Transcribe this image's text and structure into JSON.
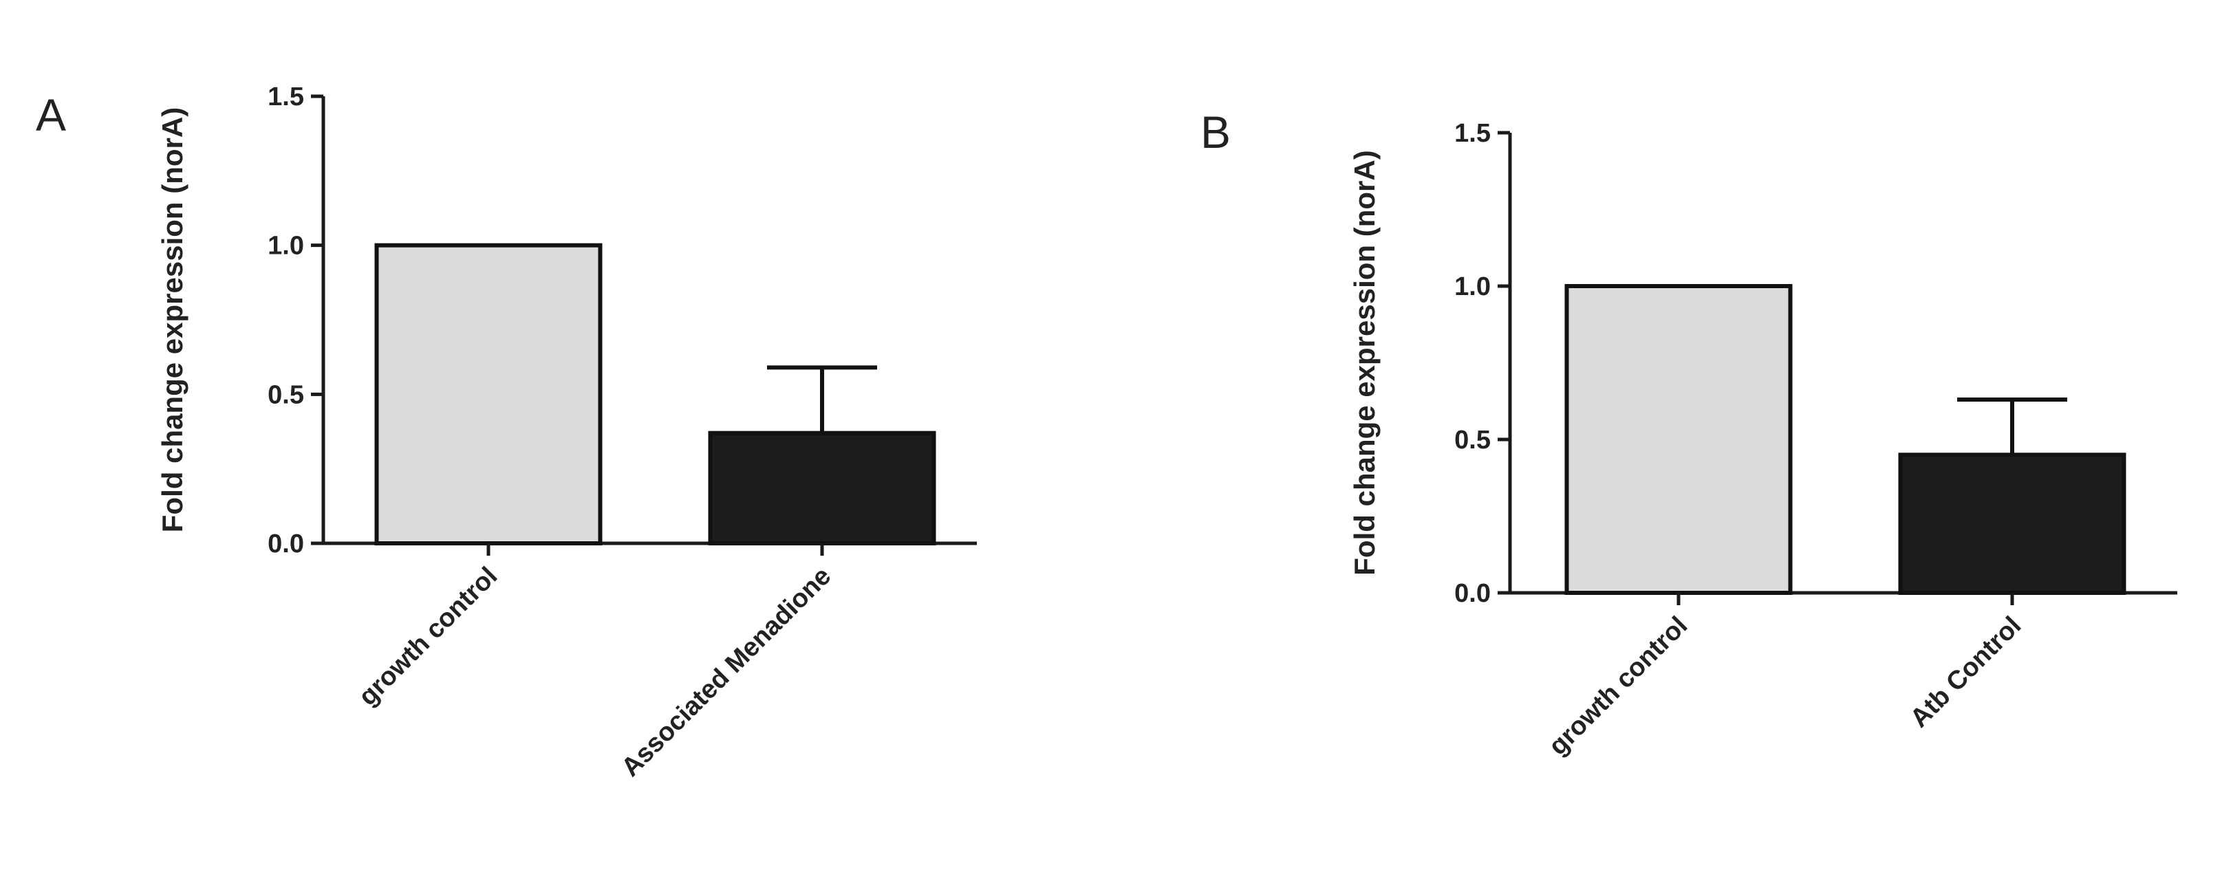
{
  "chart_data": [
    {
      "panel_label": "A",
      "type": "bar",
      "ylabel": "Fold change expression (norA)",
      "ylim": [
        0,
        1.5
      ],
      "yticks": [
        "0.0",
        "0.5",
        "1.0",
        "1.5"
      ],
      "categories": [
        "growth control",
        "Associated Menadione"
      ],
      "values": [
        1.0,
        0.37
      ],
      "errors": [
        0,
        0.22
      ],
      "colors": [
        "#dcdcdc",
        "#1c1c1c"
      ]
    },
    {
      "panel_label": "B",
      "type": "bar",
      "ylabel": "Fold change expression (norA)",
      "ylim": [
        0,
        1.5
      ],
      "yticks": [
        "0.0",
        "0.5",
        "1.0",
        "1.5"
      ],
      "categories": [
        "growth control",
        "Atb Control"
      ],
      "values": [
        1.0,
        0.45
      ],
      "errors": [
        0,
        0.18
      ],
      "colors": [
        "#dcdcdc",
        "#1c1c1c"
      ]
    }
  ]
}
